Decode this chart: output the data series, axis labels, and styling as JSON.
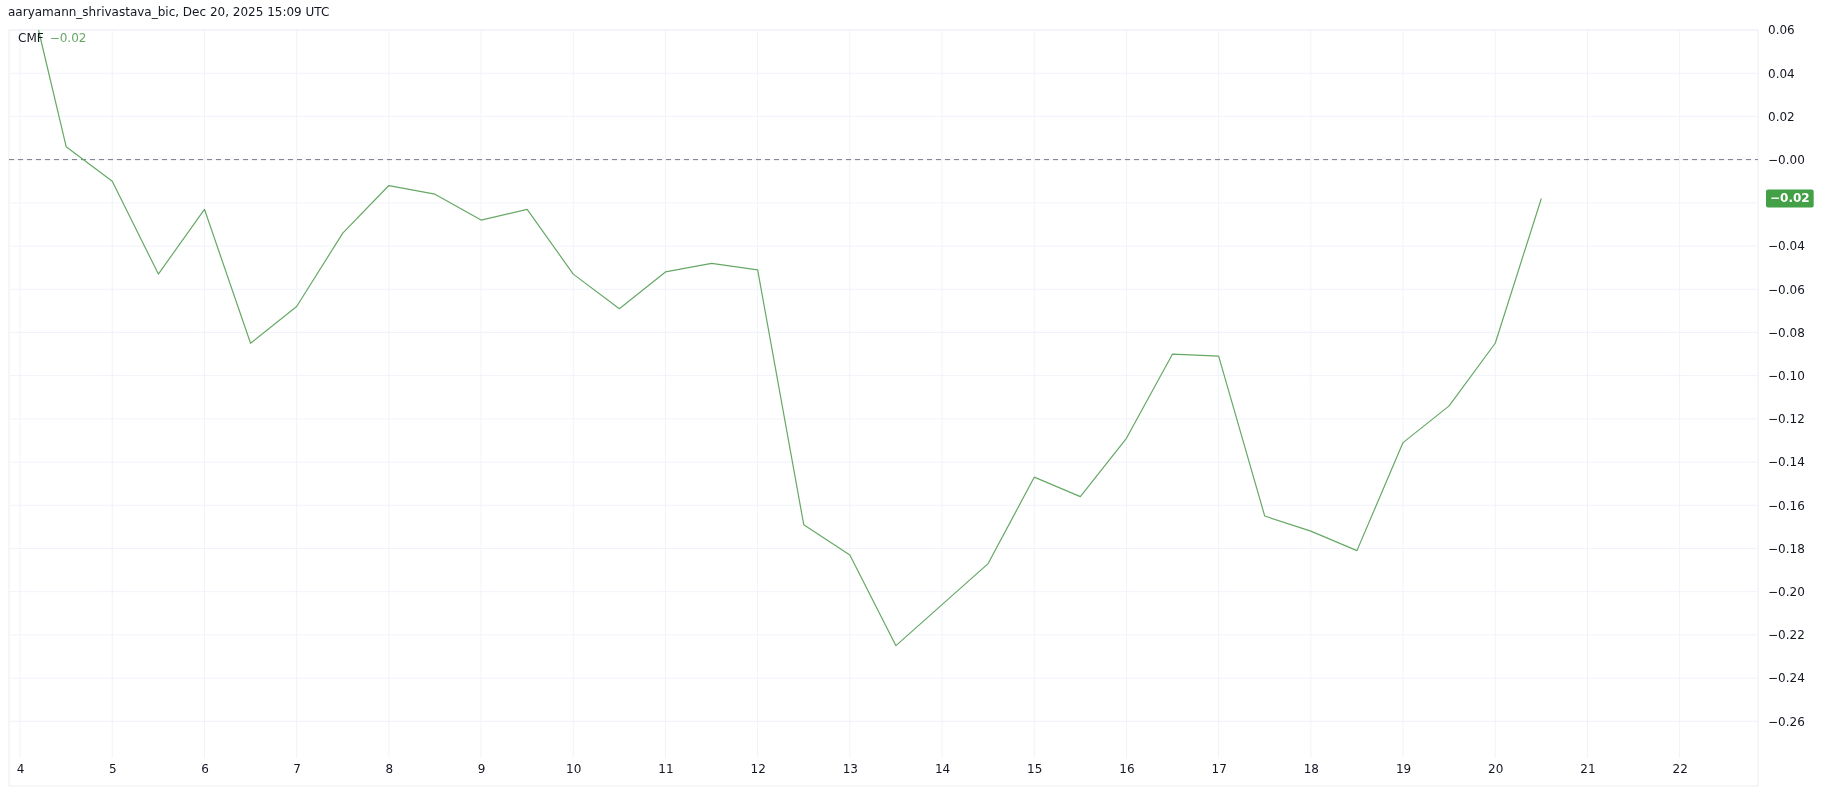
{
  "chart_data": {
    "type": "line",
    "annotations": [
      "aaryamann_shrivastava_bic, Dec 20, 2025 15:09 UTC",
      "−0.02",
      "−0.02"
    ],
    "x": [
      4.2,
      4.5,
      5,
      5.5,
      6,
      6.5,
      7,
      7.5,
      8,
      8.5,
      9,
      9.5,
      10,
      10.5,
      11,
      11.5,
      12,
      12.5,
      13,
      13.5,
      14,
      14.5,
      15,
      15.5,
      16,
      16.5,
      17,
      17.5,
      18,
      18.5,
      19,
      19.5,
      20,
      20.5
    ],
    "series": [
      {
        "name": "CMF",
        "color": "#66a865",
        "values": [
          0.06,
          0.006,
          -0.01,
          -0.053,
          -0.023,
          -0.085,
          -0.068,
          -0.034,
          -0.012,
          -0.016,
          -0.028,
          -0.023,
          -0.053,
          -0.069,
          -0.052,
          -0.048,
          -0.051,
          -0.169,
          -0.183,
          -0.225,
          -0.206,
          -0.187,
          -0.147,
          -0.156,
          -0.129,
          -0.09,
          -0.091,
          -0.165,
          -0.172,
          -0.181,
          -0.131,
          -0.114,
          -0.085,
          -0.018
        ]
      }
    ],
    "xlim": [
      3.88,
      22.85
    ],
    "xticks": [
      4,
      5,
      6,
      7,
      8,
      9,
      10,
      11,
      12,
      13,
      14,
      15,
      16,
      17,
      18,
      19,
      20,
      21,
      22
    ],
    "ylim": [
      -0.277,
      0.06
    ],
    "yticks": [
      0.06,
      0.04,
      0.02,
      {
        "value": 0,
        "label": "−0.00"
      },
      {
        "value": -0.02,
        "label": null
      },
      {
        "value": -0.04,
        "label": "−0.04"
      },
      {
        "value": -0.06,
        "label": "−0.06"
      },
      {
        "value": -0.08,
        "label": "−0.08"
      },
      {
        "value": -0.1,
        "label": "−0.10"
      },
      {
        "value": -0.12,
        "label": "−0.12"
      },
      {
        "value": -0.14,
        "label": "−0.14"
      },
      {
        "value": -0.16,
        "label": "−0.16"
      },
      {
        "value": -0.18,
        "label": "−0.18"
      },
      {
        "value": -0.2,
        "label": "−0.20"
      },
      {
        "value": -0.22,
        "label": "−0.22"
      },
      {
        "value": -0.24,
        "label": "−0.24"
      },
      {
        "value": -0.26,
        "label": "−0.26"
      }
    ],
    "ref_lines": [
      {
        "axis": "y",
        "value": 0,
        "color": "#787b86",
        "line_style": "dashed"
      }
    ],
    "grid": true,
    "legend": "top left",
    "line_style": "solid"
  }
}
